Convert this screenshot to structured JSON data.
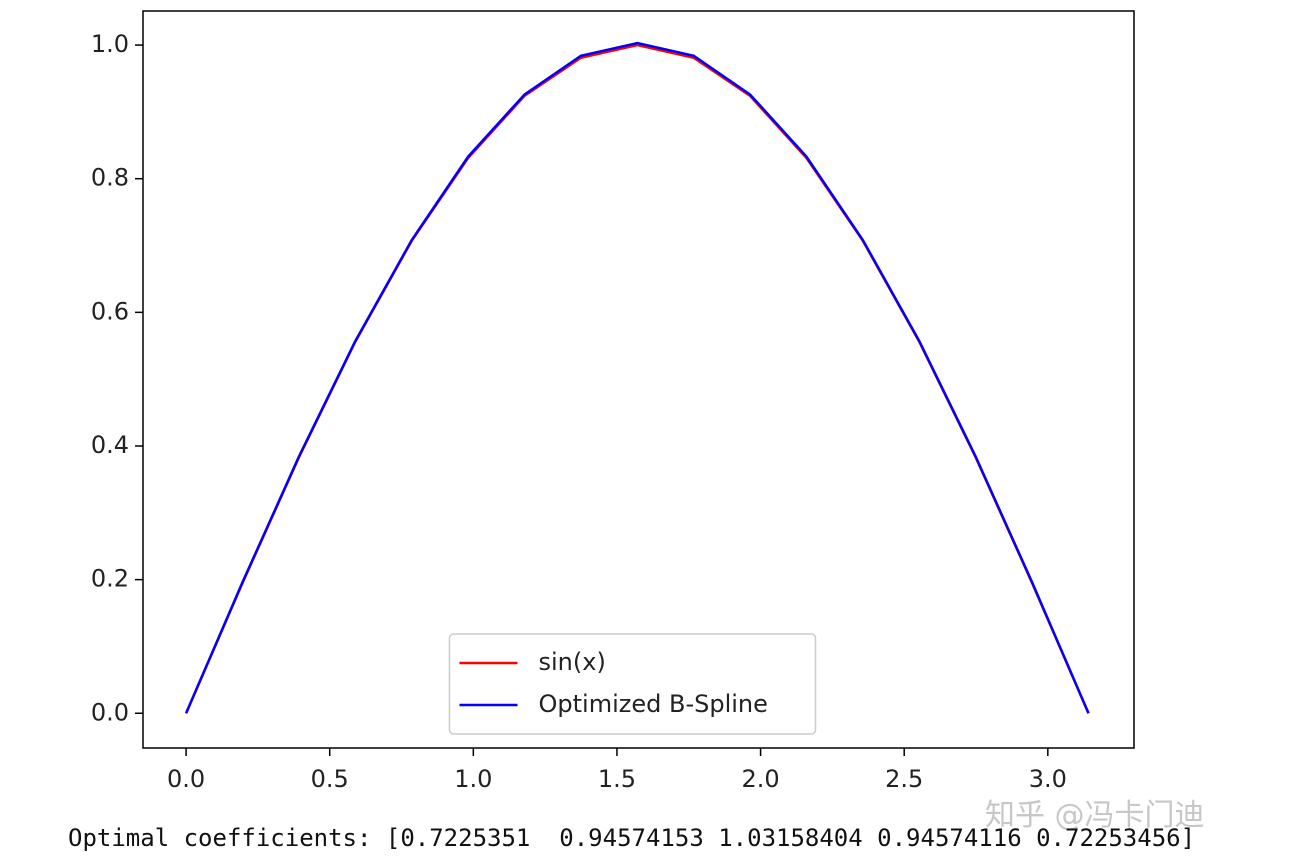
{
  "chart_data": {
    "type": "line",
    "x": [
      0,
      0.19635,
      0.3927,
      0.58905,
      0.7854,
      0.98175,
      1.1781,
      1.37445,
      1.5708,
      1.76715,
      1.9635,
      2.15984,
      2.35619,
      2.55254,
      2.74889,
      2.94524,
      3.14159
    ],
    "series": [
      {
        "name": "sin(x)",
        "color": "#ff0000",
        "values": [
          0,
          0.195,
          0.383,
          0.556,
          0.707,
          0.831,
          0.924,
          0.981,
          1.0,
          0.981,
          0.924,
          0.831,
          0.707,
          0.556,
          0.383,
          0.195,
          0
        ]
      },
      {
        "name": "Optimized B-Spline",
        "color": "#0000ff",
        "values": [
          0,
          0.196,
          0.384,
          0.557,
          0.708,
          0.833,
          0.926,
          0.984,
          1.003,
          0.984,
          0.926,
          0.833,
          0.708,
          0.557,
          0.384,
          0.196,
          0
        ]
      }
    ],
    "xlim": [
      -0.15,
      3.3
    ],
    "ylim": [
      -0.052,
      1.051
    ],
    "xticks": [
      {
        "value": 0,
        "label": "0.0"
      },
      0.5,
      {
        "value": 1,
        "label": "1.0"
      },
      1.5,
      {
        "value": 2,
        "label": "2.0"
      },
      2.5,
      {
        "value": 3,
        "label": "3.0"
      }
    ],
    "yticks": [
      {
        "value": 0,
        "label": "0.0"
      },
      0.2,
      0.4,
      0.6,
      0.8,
      {
        "value": 1,
        "label": "1.0"
      }
    ],
    "grid": false,
    "legend": "lower center"
  },
  "output_text": "Optimal coefficients: [0.7225351  0.94574153 1.03158404 0.94574116 0.72253456]",
  "watermark": "知乎 @冯卡门迪"
}
